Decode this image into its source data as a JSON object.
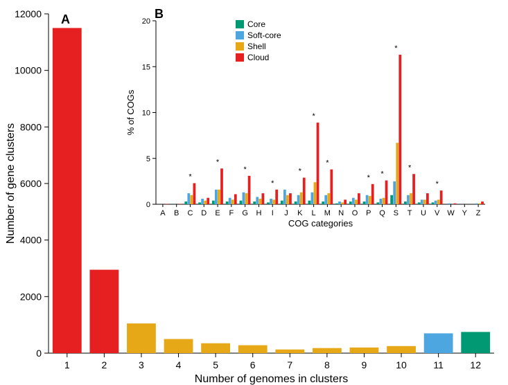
{
  "colors": {
    "core": "#009973",
    "softcore": "#4da6e0",
    "shell": "#e6a817",
    "cloud": "#e62020",
    "axis": "#000000",
    "background": "#ffffff"
  },
  "panelA": {
    "label": "A",
    "type": "bar",
    "xlabel": "Number of genomes in clusters",
    "ylabel": "Number of gene clusters",
    "ylim": [
      0,
      12000
    ],
    "ytick_step": 2000,
    "xticks": [
      1,
      2,
      3,
      4,
      5,
      6,
      7,
      8,
      9,
      10,
      11,
      12
    ],
    "bars": [
      {
        "x": 1,
        "value": 11500,
        "cat": "cloud"
      },
      {
        "x": 2,
        "value": 2950,
        "cat": "cloud"
      },
      {
        "x": 3,
        "value": 1050,
        "cat": "shell"
      },
      {
        "x": 4,
        "value": 500,
        "cat": "shell"
      },
      {
        "x": 5,
        "value": 350,
        "cat": "shell"
      },
      {
        "x": 6,
        "value": 280,
        "cat": "shell"
      },
      {
        "x": 7,
        "value": 130,
        "cat": "shell"
      },
      {
        "x": 8,
        "value": 180,
        "cat": "shell"
      },
      {
        "x": 9,
        "value": 200,
        "cat": "shell"
      },
      {
        "x": 10,
        "value": 250,
        "cat": "shell"
      },
      {
        "x": 11,
        "value": 700,
        "cat": "softcore"
      },
      {
        "x": 12,
        "value": 750,
        "cat": "core"
      }
    ],
    "bar_width": 0.78
  },
  "panelB": {
    "label": "B",
    "type": "grouped-bar",
    "xlabel": "COG categories",
    "ylabel": "% of COGs",
    "ylim": [
      0,
      20
    ],
    "ytick_step": 5,
    "legend": [
      {
        "key": "core",
        "label": "Core"
      },
      {
        "key": "softcore",
        "label": "Soft-core"
      },
      {
        "key": "shell",
        "label": "Shell"
      },
      {
        "key": "cloud",
        "label": "Cloud"
      }
    ],
    "categories": [
      "A",
      "B",
      "C",
      "D",
      "E",
      "F",
      "G",
      "H",
      "I",
      "J",
      "K",
      "L",
      "M",
      "N",
      "O",
      "P",
      "Q",
      "S",
      "T",
      "U",
      "V",
      "W",
      "Y",
      "Z"
    ],
    "data": {
      "A": {
        "core": 0.0,
        "softcore": 0.0,
        "shell": 0.0,
        "cloud": 0.05,
        "star": false
      },
      "B": {
        "core": 0.0,
        "softcore": 0.0,
        "shell": 0.0,
        "cloud": 0.05,
        "star": false
      },
      "C": {
        "core": 0.3,
        "softcore": 1.2,
        "shell": 1.0,
        "cloud": 2.3,
        "star": true
      },
      "D": {
        "core": 0.2,
        "softcore": 0.6,
        "shell": 0.4,
        "cloud": 0.7,
        "star": false
      },
      "E": {
        "core": 0.4,
        "softcore": 1.6,
        "shell": 1.6,
        "cloud": 3.9,
        "star": true
      },
      "F": {
        "core": 0.3,
        "softcore": 0.7,
        "shell": 0.5,
        "cloud": 1.1,
        "star": false
      },
      "G": {
        "core": 0.4,
        "softcore": 1.3,
        "shell": 1.2,
        "cloud": 3.1,
        "star": true
      },
      "H": {
        "core": 0.3,
        "softcore": 0.8,
        "shell": 0.6,
        "cloud": 1.2,
        "star": false
      },
      "I": {
        "core": 0.2,
        "softcore": 0.6,
        "shell": 0.5,
        "cloud": 1.6,
        "star": true
      },
      "J": {
        "core": 0.4,
        "softcore": 1.6,
        "shell": 1.0,
        "cloud": 1.2,
        "star": false
      },
      "K": {
        "core": 0.3,
        "softcore": 1.0,
        "shell": 1.3,
        "cloud": 2.9,
        "star": true
      },
      "L": {
        "core": 0.4,
        "softcore": 1.3,
        "shell": 2.4,
        "cloud": 8.9,
        "star": true
      },
      "M": {
        "core": 0.3,
        "softcore": 1.0,
        "shell": 1.2,
        "cloud": 3.8,
        "star": true
      },
      "N": {
        "core": 0.1,
        "softcore": 0.3,
        "shell": 0.2,
        "cloud": 0.5,
        "star": false
      },
      "O": {
        "core": 0.3,
        "softcore": 0.7,
        "shell": 0.5,
        "cloud": 1.2,
        "star": false
      },
      "P": {
        "core": 0.3,
        "softcore": 1.0,
        "shell": 0.9,
        "cloud": 2.2,
        "star": true
      },
      "Q": {
        "core": 0.2,
        "softcore": 0.6,
        "shell": 0.7,
        "cloud": 2.6,
        "star": true
      },
      "S": {
        "core": 1.0,
        "softcore": 2.5,
        "shell": 6.7,
        "cloud": 16.3,
        "star": true
      },
      "T": {
        "core": 0.3,
        "softcore": 1.0,
        "shell": 1.2,
        "cloud": 3.3,
        "star": true
      },
      "U": {
        "core": 0.2,
        "softcore": 0.5,
        "shell": 0.5,
        "cloud": 1.2,
        "star": false
      },
      "V": {
        "core": 0.2,
        "softcore": 0.4,
        "shell": 0.5,
        "cloud": 1.5,
        "star": true
      },
      "W": {
        "core": 0.0,
        "softcore": 0.1,
        "shell": 0.0,
        "cloud": 0.1,
        "star": false
      },
      "Y": {
        "core": 0.0,
        "softcore": 0.0,
        "shell": 0.0,
        "cloud": 0.0,
        "star": false
      },
      "Z": {
        "core": 0.0,
        "softcore": 0.1,
        "shell": 0.1,
        "cloud": 0.3,
        "star": false
      }
    },
    "series_order": [
      "core",
      "softcore",
      "shell",
      "cloud"
    ]
  }
}
